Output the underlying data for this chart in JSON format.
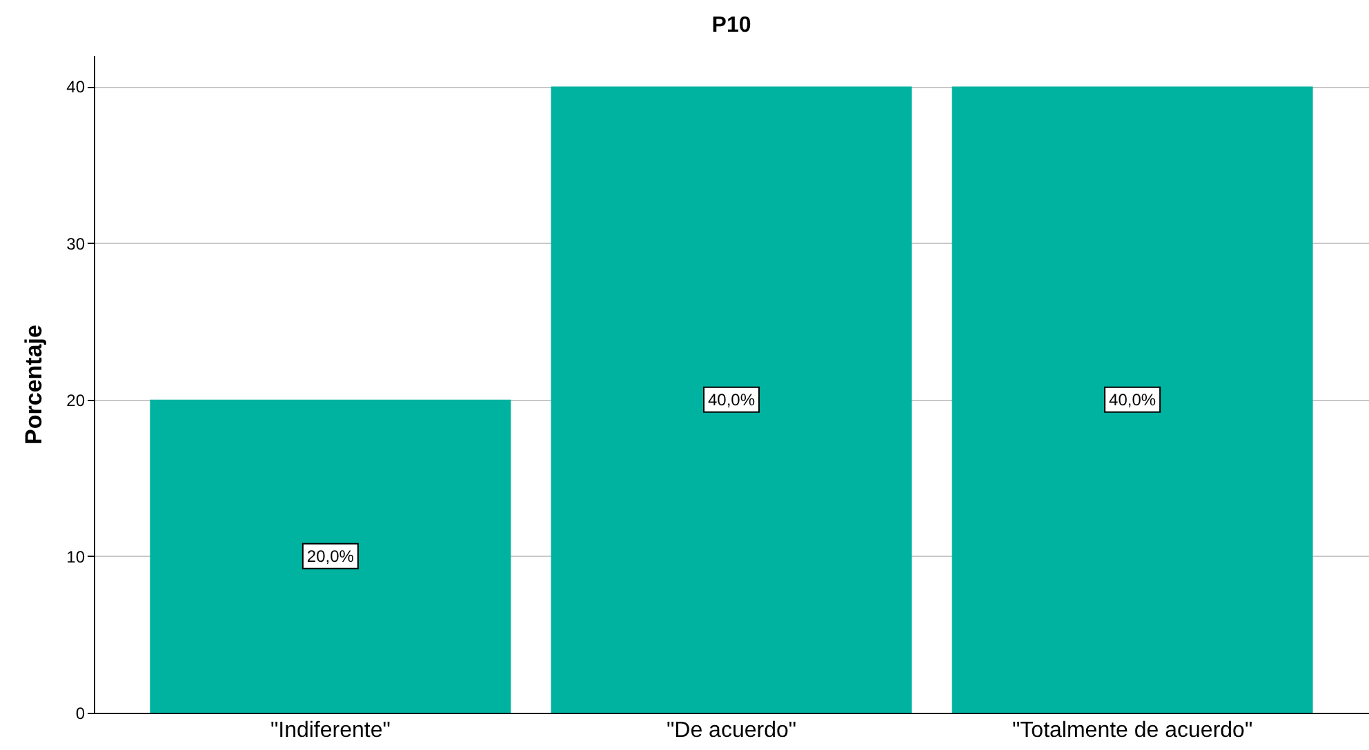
{
  "chart_data": {
    "type": "bar",
    "title": "P10",
    "ylabel": "Porcentaje",
    "categories": [
      "\"Indiferente\"",
      "\"De acuerdo\"",
      "\"Totalmente de acuerdo\""
    ],
    "values": [
      20,
      40,
      40
    ],
    "value_labels": [
      "20,0%",
      "40,0%",
      "40,0%"
    ],
    "color": "#00b2a0",
    "ylim": [
      0,
      42
    ],
    "yticks": [
      0,
      10,
      20,
      30,
      40
    ],
    "grid": "y"
  }
}
